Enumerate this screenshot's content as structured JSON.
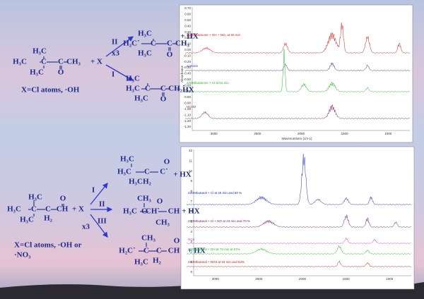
{
  "scheme1": {
    "reactant": [
      "H₃C",
      "H₃C",
      "C",
      "C",
      "CH₃",
      "H₃C",
      "O"
    ],
    "reagent": "+ X",
    "note": "X=Cl atoms, ·OH",
    "arrows": [
      "II",
      "x3",
      "I"
    ],
    "product1": [
      "H₂C˙",
      "C",
      "C",
      "CH₃",
      "H₃C",
      "H₃C",
      "O",
      "+ HX"
    ],
    "product2": [
      "H₃C",
      "H₃C",
      "C",
      "C",
      "CH₂˙",
      "H₃C",
      "O",
      "+ HX"
    ]
  },
  "scheme2": {
    "reactant": [
      "H₃C",
      "H₃C",
      "C",
      "C",
      "CH",
      "H₃C",
      "H₂",
      "O"
    ],
    "reagent": "+ X",
    "note": [
      "X=Cl atoms, ·OH or",
      "·NO₃"
    ],
    "arrows": [
      "I",
      "II",
      "III",
      "x3"
    ],
    "product1": [
      "H₃C",
      "H₃C",
      "C",
      "C",
      "C˙",
      "H₃C",
      "H₂",
      "O",
      "+ HX"
    ],
    "product2": [
      "CH₃",
      "H₃C",
      "C",
      "CH˙",
      "CH",
      "CH₃",
      "O",
      "+ HX"
    ],
    "product3": [
      "CH₃",
      "H₂C˙",
      "C",
      "C",
      "CH",
      "H₃C",
      "H₂",
      "O",
      "+ HX"
    ]
  },
  "spectrum1": {
    "xlabel": "Wavenumbers (cm-1)",
    "ylabel": "Absorbance",
    "xticks": [
      "3000",
      "2500",
      "2000",
      "1500",
      "1000"
    ],
    "yticks": [
      "0.70",
      "0.60",
      "0.50",
      "0.40",
      "0.30",
      "0.20",
      "0.10",
      "0.00",
      "-0.10",
      "-0.20",
      "-0.30",
      "-0.40",
      "-0.50",
      "-0.60",
      "-0.70",
      "-0.80",
      "-0.90",
      "-1.00",
      "-1.10",
      "-1.20",
      "-1.30"
    ],
    "legend": [
      "22DMbutanone + OH + NO₂ at 60 min",
      "acetone",
      "22DMbutanone + Cl at 61 min",
      "HCHO"
    ]
  },
  "spectrum2": {
    "xticks": [
      "3000",
      "2500",
      "2000",
      "1500",
      "1000"
    ],
    "yticks": [
      "12",
      "11",
      "10",
      "9",
      "8",
      "7",
      "6",
      "5",
      "4",
      "3",
      "2",
      "1",
      "0"
    ],
    "legend": [
      "22DMbutanal + Cl at 26 min and 60 %",
      "22DMbutanal + Cl + NO at 23 min and 70 %",
      "NO2",
      "22DMbutanal + OH at 72 min at 67%",
      "22DMbutanal + NO3 at 34 min and 63%"
    ]
  }
}
